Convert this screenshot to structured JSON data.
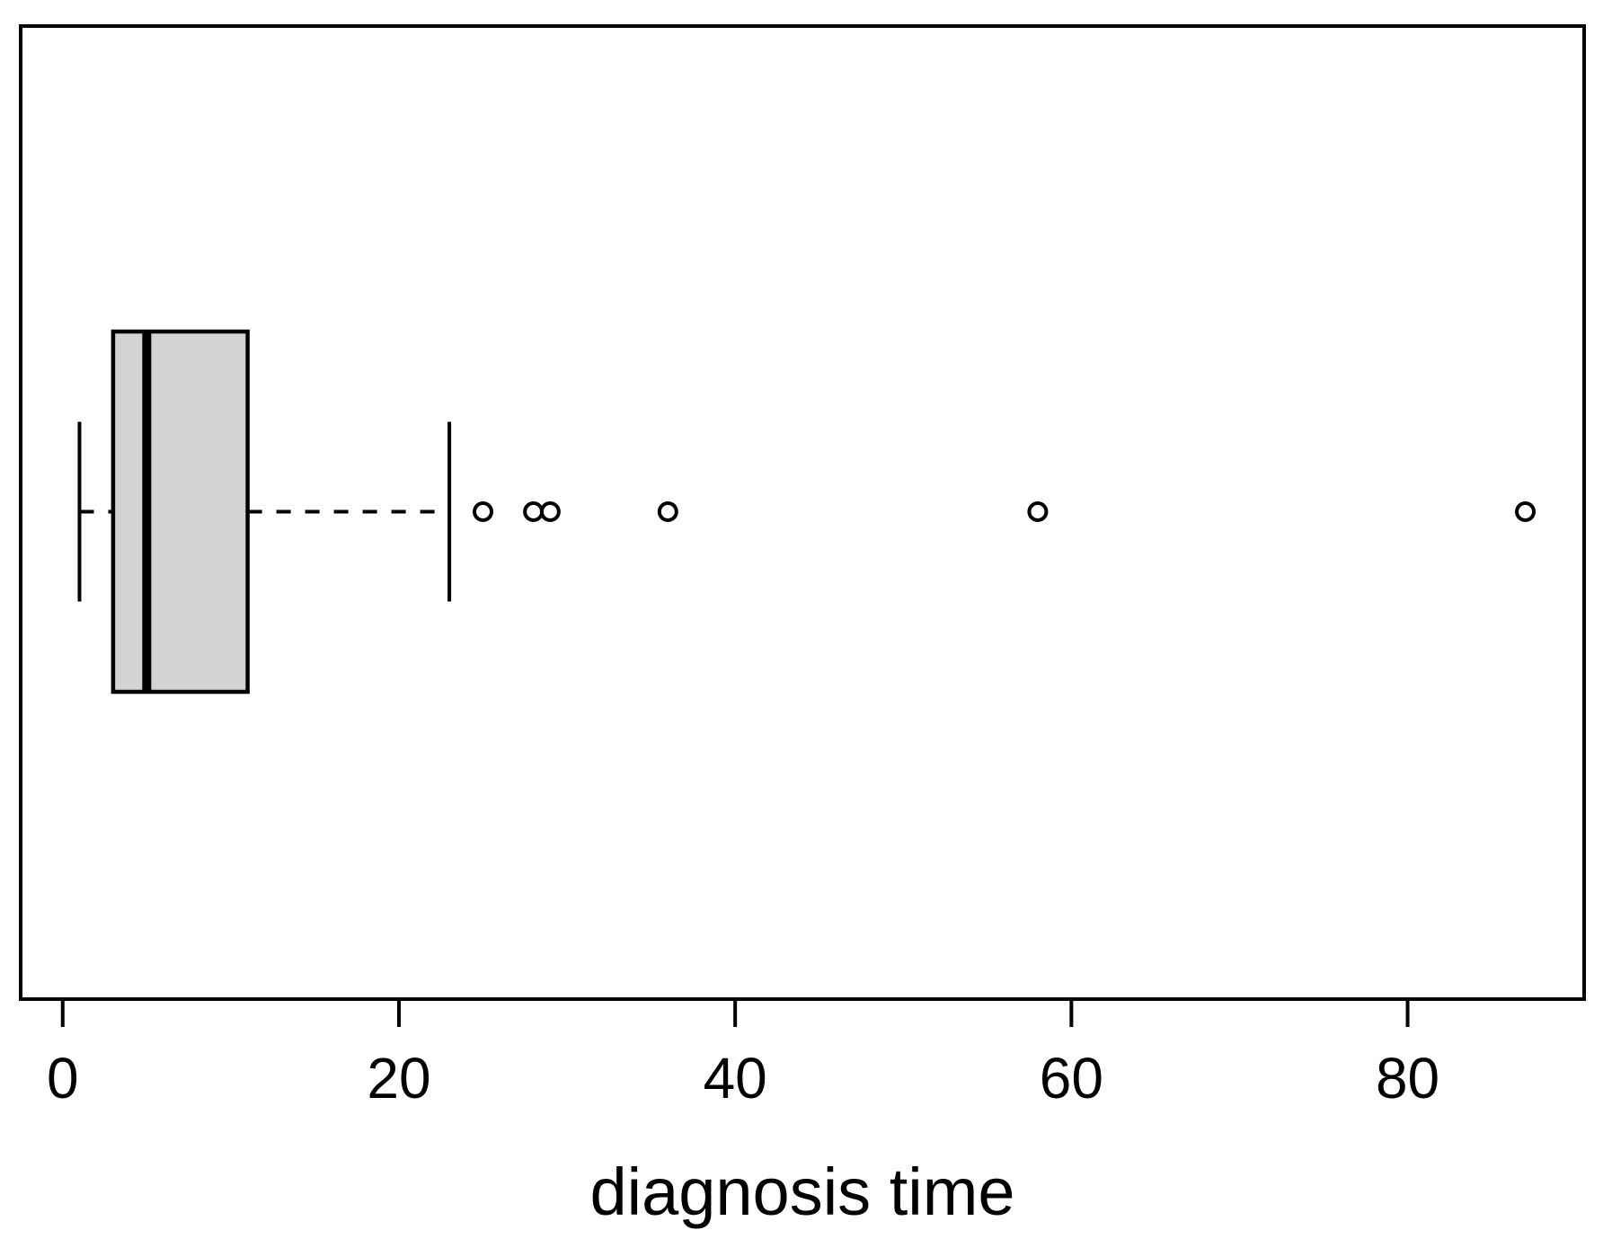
{
  "chart_data": {
    "type": "box",
    "orientation": "horizontal",
    "title": "",
    "xlabel": "diagnosis time",
    "ylabel": "",
    "xlim": [
      -2.5,
      90.5
    ],
    "x_ticks": [
      0,
      20,
      40,
      60,
      80
    ],
    "x_tick_labels": [
      "0",
      "20",
      "40",
      "60",
      "80"
    ],
    "grid": false,
    "legend": false,
    "series": [
      {
        "name": "diagnosis time",
        "whisker_low": 1,
        "q1": 3,
        "median": 5,
        "q3": 11,
        "whisker_high": 23,
        "outliers": [
          25,
          28,
          29,
          36,
          58,
          87
        ]
      }
    ],
    "style": {
      "box_fill": "#d3d3d3",
      "line_color": "#000000",
      "background": "#ffffff",
      "whisker_line_style": "dashed",
      "outlier_marker": "open-circle"
    }
  }
}
